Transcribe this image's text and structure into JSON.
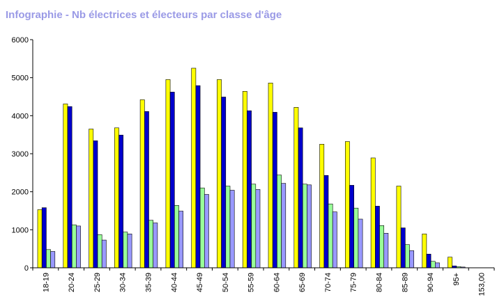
{
  "title": "Infographie - Nb électrices et électeurs par classe d'âge",
  "chart_data": {
    "type": "bar",
    "title": "Infographie - Nb électrices et électeurs par classe d'âge",
    "xlabel": "",
    "ylabel": "",
    "ylim": [
      0,
      6000
    ],
    "yticks": [
      0,
      1000,
      2000,
      3000,
      4000,
      5000,
      6000
    ],
    "grid": false,
    "legend": "none",
    "categories": [
      "18-19",
      "20-24",
      "25-29",
      "30-34",
      "35-39",
      "40-44",
      "45-49",
      "50-54",
      "55-59",
      "60-64",
      "65-69",
      "70-74",
      "75-79",
      "80-84",
      "85-89",
      "90-94",
      "95+",
      "153,00"
    ],
    "series": [
      {
        "color": "#ffff00",
        "values": [
          1530,
          4310,
          3650,
          3680,
          4420,
          4950,
          5250,
          4950,
          4640,
          4860,
          4220,
          3250,
          3320,
          2890,
          2150,
          890,
          280,
          0
        ]
      },
      {
        "color": "#0000cc",
        "values": [
          1580,
          4240,
          3340,
          3490,
          4110,
          4620,
          4790,
          4490,
          4130,
          4090,
          3680,
          2430,
          2170,
          1620,
          1050,
          360,
          50,
          0
        ]
      },
      {
        "color": "#99ff99",
        "values": [
          480,
          1130,
          870,
          940,
          1250,
          1640,
          2100,
          2150,
          2200,
          2440,
          2200,
          1680,
          1570,
          1110,
          610,
          170,
          30,
          0
        ]
      },
      {
        "color": "#9999ff",
        "values": [
          430,
          1100,
          730,
          890,
          1180,
          1490,
          1930,
          2040,
          2060,
          2220,
          2180,
          1470,
          1280,
          910,
          450,
          130,
          20,
          0
        ]
      }
    ]
  }
}
